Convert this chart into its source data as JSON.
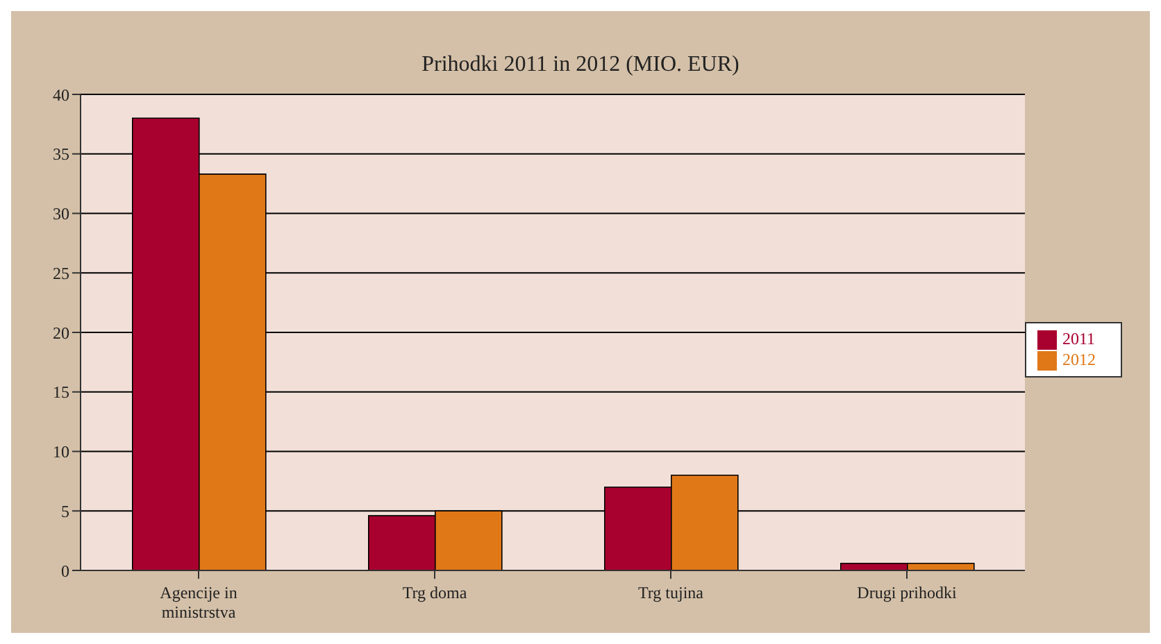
{
  "chart_data": {
    "type": "bar",
    "title": "Prihodki 2011 in 2012 (MIO. EUR)",
    "categories": [
      "Agencije in ministrstva",
      "Trg doma",
      "Trg tujina",
      "Drugi prihodki"
    ],
    "series": [
      {
        "name": "2011",
        "color": "#a8002f",
        "values": [
          38,
          4.6,
          7,
          0.6
        ]
      },
      {
        "name": "2012",
        "color": "#e07818",
        "values": [
          33.3,
          5,
          8,
          0.6
        ]
      }
    ],
    "ylim": [
      0,
      40
    ],
    "yticks": [
      0,
      5,
      10,
      15,
      20,
      25,
      30,
      35,
      40
    ],
    "grid": "y",
    "legend": "right"
  }
}
